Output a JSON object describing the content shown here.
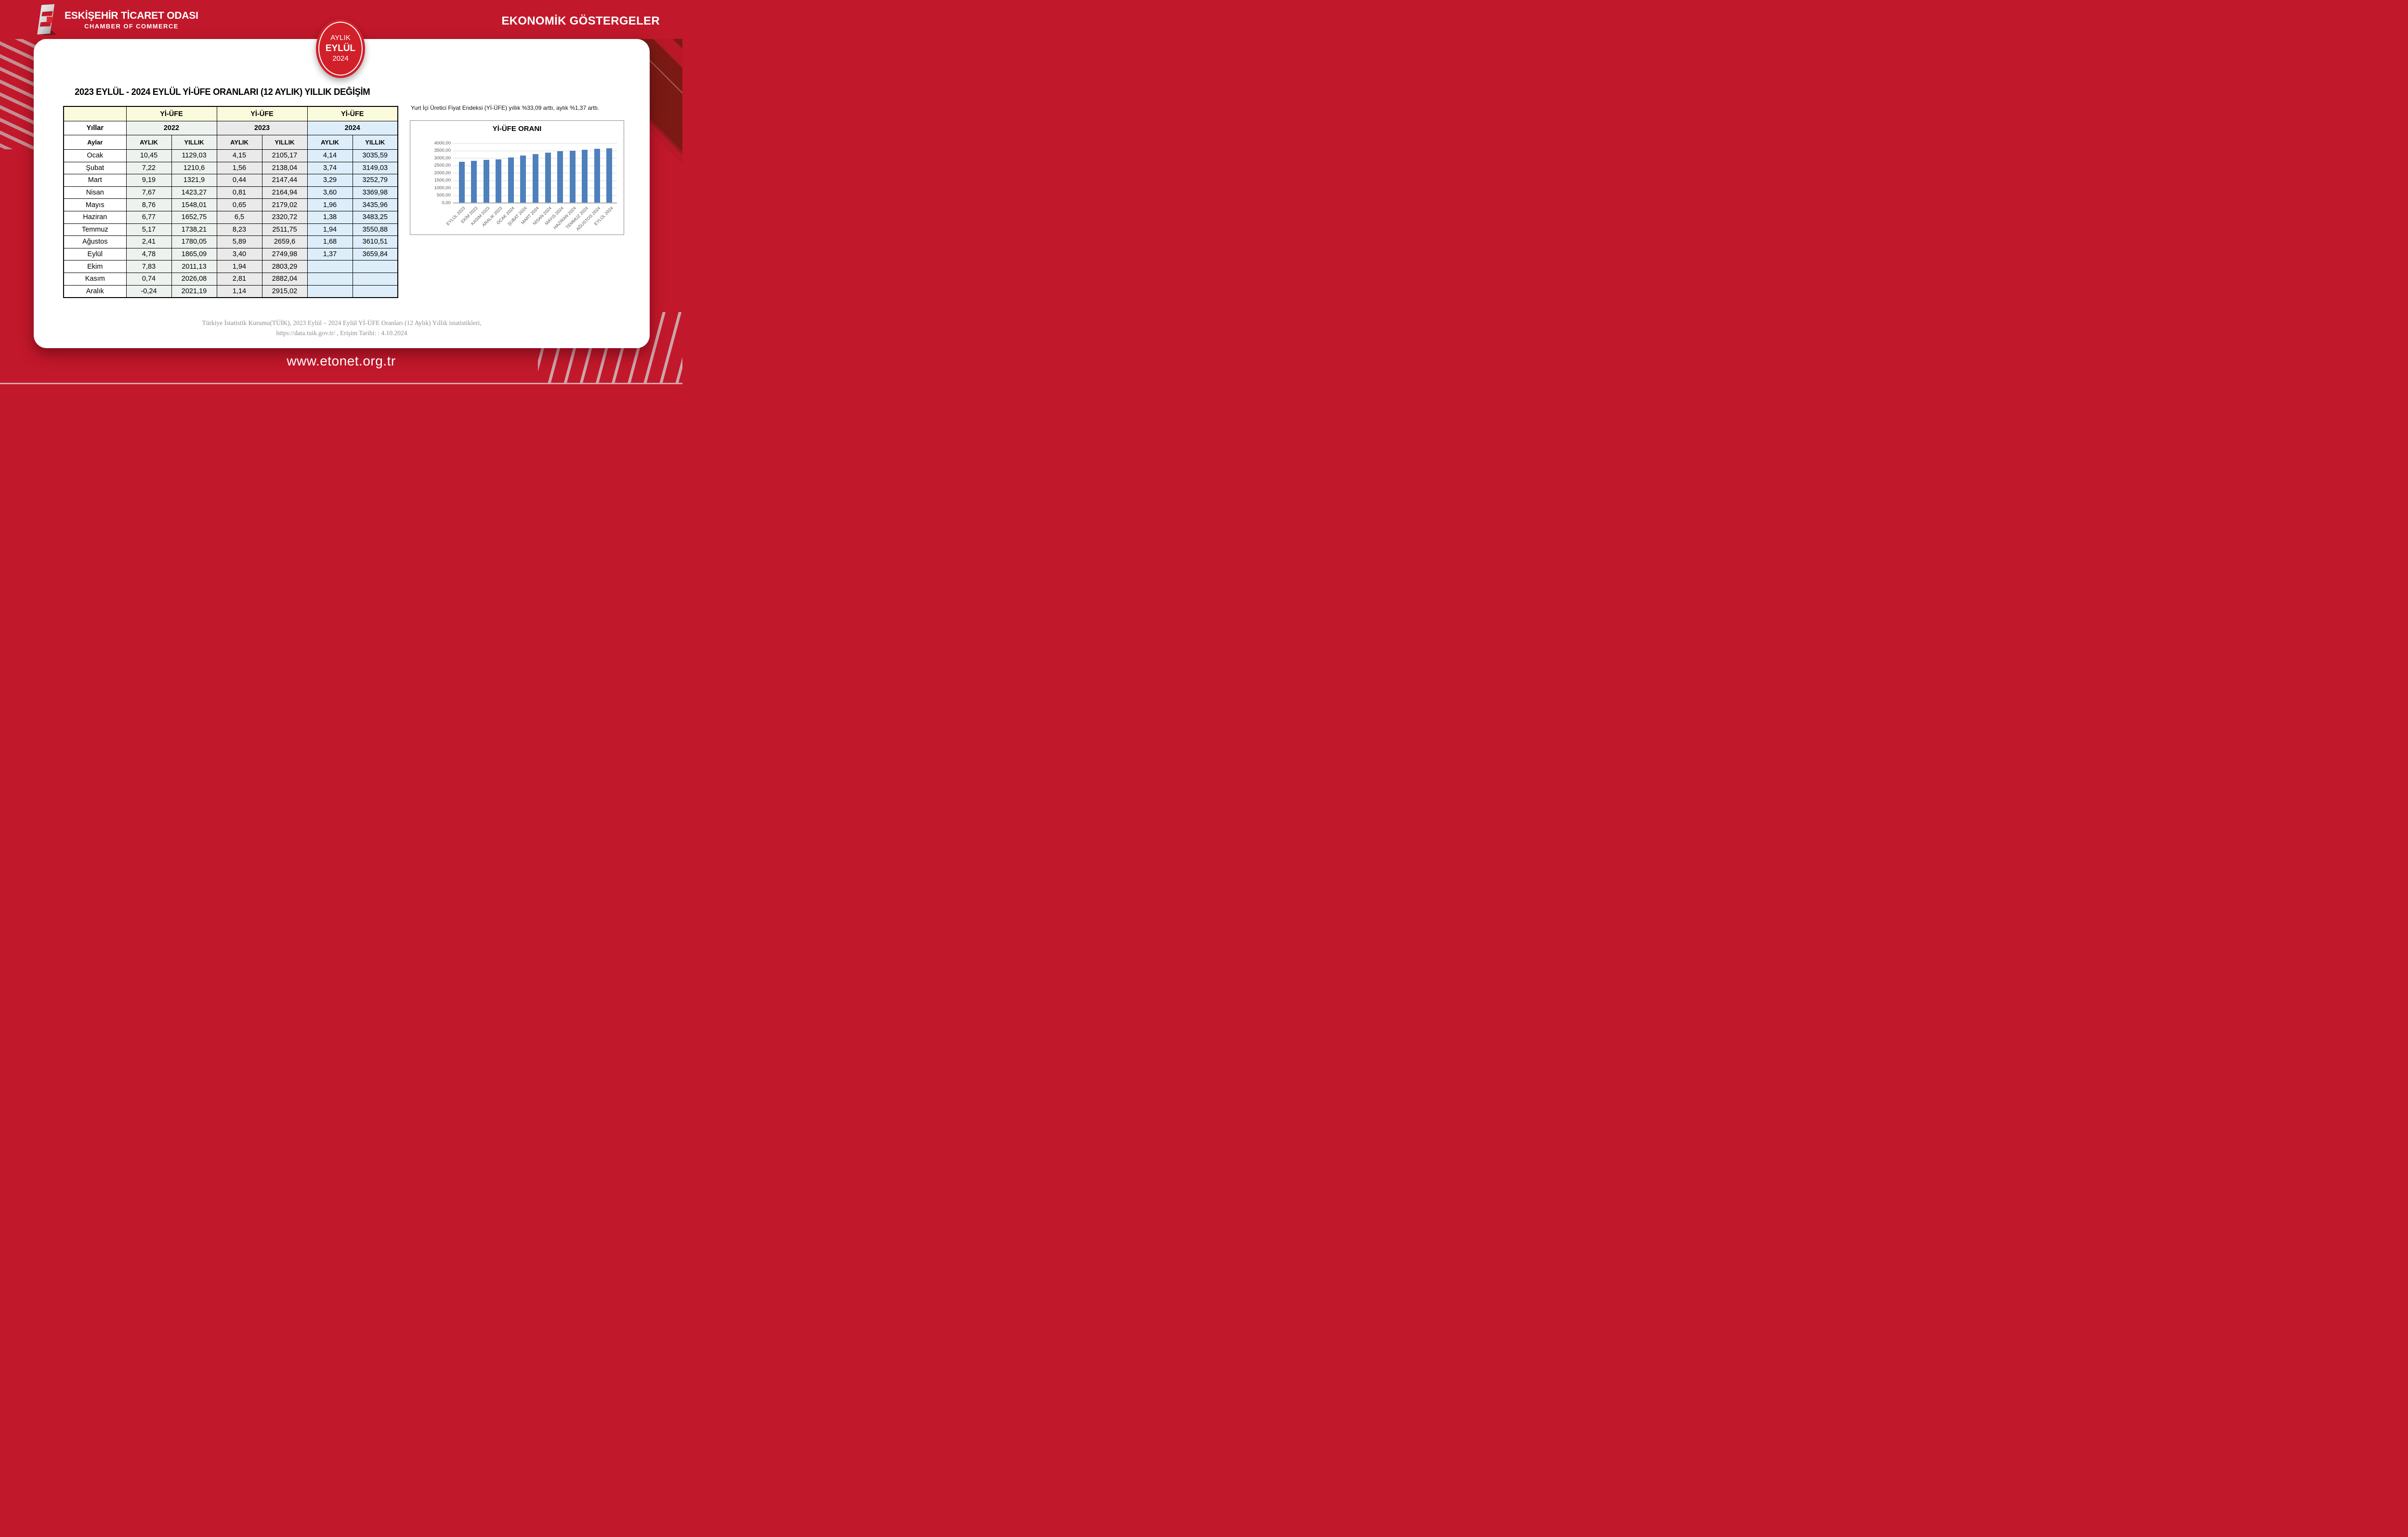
{
  "header": {
    "logo": {
      "title": "ESKİŞEHİR TİCARET ODASI",
      "subtitle": "CHAMBER OF COMMERCE"
    },
    "badge": {
      "line1": "AYLIK",
      "line2": "EYLÜL",
      "line3": "2024"
    },
    "right_title": "EKONOMİK GÖSTERGELER"
  },
  "main": {
    "title": "2023 EYLÜL - 2024 EYLÜL Yİ-ÜFE ORANLARI (12 AYLIK) YILLIK DEĞİŞİM",
    "table": {
      "group_header": "Yİ-ÜFE",
      "years_label": "Yıllar",
      "months_label": "Aylar",
      "years": [
        "2022",
        "2023",
        "2024"
      ],
      "sub_headers": [
        "AYLIK",
        "YILLIK"
      ],
      "rows": [
        {
          "month": "Ocak",
          "values": [
            "10,45",
            "1129,03",
            "4,15",
            "2105,17",
            "4,14",
            "3035,59"
          ]
        },
        {
          "month": "Şubat",
          "values": [
            "7,22",
            "1210,6",
            "1,56",
            "2138,04",
            "3,74",
            "3149,03"
          ]
        },
        {
          "month": "Mart",
          "values": [
            "9,19",
            "1321,9",
            "0,44",
            "2147,44",
            "3,29",
            "3252,79"
          ]
        },
        {
          "month": "Nisan",
          "values": [
            "7,67",
            "1423,27",
            "0,81",
            "2164,94",
            "3,60",
            "3369,98"
          ]
        },
        {
          "month": "Mayıs",
          "values": [
            "8,76",
            "1548,01",
            "0,65",
            "2179,02",
            "1,96",
            "3435,96"
          ]
        },
        {
          "month": "Haziran",
          "values": [
            "6,77",
            "1652,75",
            "6,5",
            "2320,72",
            "1,38",
            "3483,25"
          ]
        },
        {
          "month": "Temmuz",
          "values": [
            "5,17",
            "1738,21",
            "8,23",
            "2511,75",
            "1,94",
            "3550,88"
          ]
        },
        {
          "month": "Ağustos",
          "values": [
            "2,41",
            "1780,05",
            "5,89",
            "2659,6",
            "1,68",
            "3610,51"
          ]
        },
        {
          "month": "Eylül",
          "values": [
            "4,78",
            "1865,09",
            "3,40",
            "2749,98",
            "1,37",
            "3659,84"
          ]
        },
        {
          "month": "Ekim",
          "values": [
            "7,83",
            "2011,13",
            "1,94",
            "2803,29",
            "",
            ""
          ]
        },
        {
          "month": "Kasım",
          "values": [
            "0,74",
            "2026,08",
            "2,81",
            "2882,04",
            "",
            ""
          ]
        },
        {
          "month": "Aralık",
          "values": [
            "-0,24",
            "2021,19",
            "1,14",
            "2915,02",
            "",
            ""
          ]
        }
      ]
    },
    "note": "Yurt İçi Üretici Fiyat Endeksi (Yİ-ÜFE) yıllık %33,09 arttı, aylık %1,37 arttı.",
    "source_line1": "Türkiye İstatistik Kurumu(TÜİK), 2023 Eylül – 2024 Eylül Yİ-ÜFE Oranları (12 Aylık) Yıllık istatistikleri,",
    "source_line2": "https://data.tuik.gov.tr/ , Erişim Tarihi: : 4.10.2024"
  },
  "chart_data": {
    "type": "bar",
    "title": "Yİ-ÜFE ORANI",
    "categories": [
      "EYLÜL 2023",
      "EKİM 2023",
      "KASIM 2023",
      "ARALIK 2023",
      "OCAK 2024",
      "ŞUBAT 2024",
      "MART 2024",
      "NİSAN 2024",
      "MAYIS 2024",
      "HAZİRAN 2024",
      "TEMMUZ 2024",
      "AĞUSTOS 2024",
      "EYLÜL 2024"
    ],
    "values": [
      2749.98,
      2803.29,
      2882.04,
      2915.02,
      3035.59,
      3149.03,
      3252.79,
      3369.98,
      3435.96,
      3483.25,
      3550.88,
      3610.51,
      3659.84
    ],
    "ylim": [
      0,
      4000
    ],
    "ytick_step": 500,
    "ytick_labels": [
      "4000,00",
      "3500,00",
      "3000,00",
      "2500,00",
      "2000,00",
      "1500,00",
      "1000,00",
      "500,00",
      "0,00"
    ],
    "xlabel": "",
    "ylabel": "",
    "grid": true,
    "legend_position": "none",
    "xlabel_rotation_deg": 45,
    "bar_color": "#4e80bc"
  },
  "footer": {
    "website": "www.etonet.org.tr"
  },
  "colors": {
    "background_red": "#c2182b",
    "dark_maroon": "#7b1a15",
    "badge_red": "#d1202a",
    "card_white": "#ffffff",
    "table_header_cream": "#fafadd",
    "col_2022": "#eef2ef",
    "col_2023": "#eaeaea",
    "col_2024": "#ddeefa",
    "bar_blue": "#4e80bc",
    "source_gray": "#8f8f8f"
  }
}
